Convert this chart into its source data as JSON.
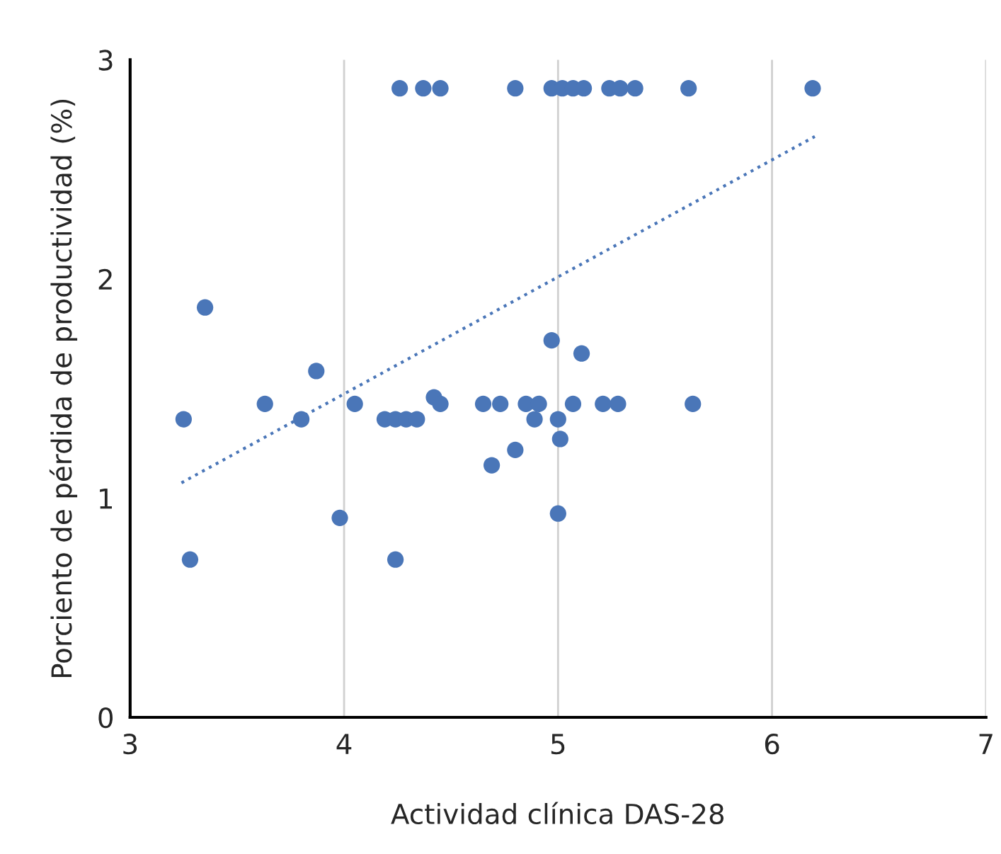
{
  "chart_data": {
    "type": "scatter",
    "xlabel": "Actividad clínica DAS-28",
    "ylabel": "Porciento de pérdida de productividad (%)",
    "xlim": [
      3,
      7
    ],
    "ylim": [
      0,
      3
    ],
    "xticks": [
      3,
      4,
      5,
      6,
      7
    ],
    "yticks": [
      0,
      1,
      2,
      3
    ],
    "grid": "x",
    "series": [
      {
        "color": "#4a76b8",
        "marker": "circle",
        "x": [
          4.26,
          4.37,
          4.45,
          4.8,
          4.97,
          5.02,
          5.07,
          5.12,
          5.24,
          5.29,
          5.36,
          5.61,
          6.19,
          3.25,
          3.28,
          3.63,
          3.87,
          3.8,
          4.05,
          3.98,
          4.19,
          4.24,
          4.29,
          4.34,
          4.24,
          4.42,
          4.45,
          4.65,
          4.73,
          4.69,
          4.8,
          4.85,
          4.91,
          4.89,
          5.0,
          5.01,
          5.0,
          5.07,
          5.21,
          5.28,
          5.63,
          4.97,
          5.11,
          3.35
        ],
        "values": [
          2.87,
          2.87,
          2.87,
          2.87,
          2.87,
          2.87,
          2.87,
          2.87,
          2.87,
          2.87,
          2.87,
          2.87,
          2.87,
          1.36,
          0.72,
          1.43,
          1.58,
          1.36,
          1.43,
          0.91,
          1.36,
          1.36,
          1.36,
          1.36,
          0.72,
          1.46,
          1.43,
          1.43,
          1.43,
          1.15,
          1.22,
          1.43,
          1.43,
          1.36,
          1.36,
          1.27,
          0.93,
          1.43,
          1.43,
          1.43,
          1.43,
          1.72,
          1.66,
          1.87
        ]
      },
      {
        "type": "line",
        "line_style": "dotted",
        "color": "#4a76b8",
        "x": [
          3.24,
          6.2
        ],
        "values": [
          1.07,
          2.65
        ]
      }
    ]
  }
}
